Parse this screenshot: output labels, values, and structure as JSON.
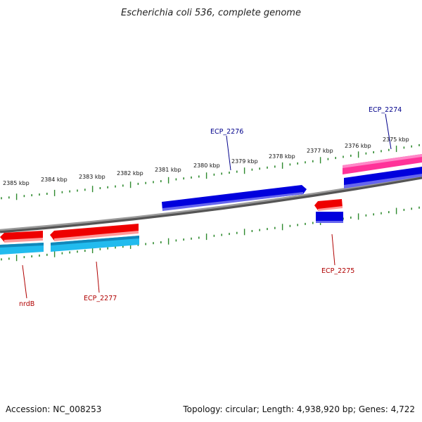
{
  "title": "Escherichia coli 536, complete genome",
  "footer": {
    "accession": "Accession: NC_008253",
    "summary": "Topology: circular; Length: 4,938,920 bp; Genes: 4,722"
  },
  "scale_labels": [
    "2385 kbp",
    "2384 kbp",
    "2383 kbp",
    "2382 kbp",
    "2381 kbp",
    "2380 kbp",
    "2379 kbp",
    "2378 kbp",
    "2377 kbp",
    "2376 kbp",
    "2375 kbp"
  ],
  "gene_labels": {
    "ecp_2274": "ECP_2274",
    "ecp_2276": "ECP_2276",
    "ecp_2275": "ECP_2275",
    "ecp_2277": "ECP_2277",
    "nrdb": "nrdB"
  },
  "colors": {
    "backbone": "#808080",
    "tick": "#2f8a2f",
    "forward_cds": "#0000dd",
    "reverse_cds": "#ee0000",
    "reverse_gene": "#22bbee",
    "forward_gene": "#ff3399",
    "label_forward": "#00008b",
    "label_reverse": "#b00000"
  }
}
